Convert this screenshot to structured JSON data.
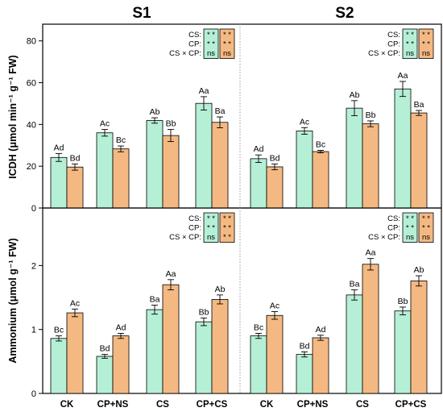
{
  "colors": {
    "series_1": "#b5efd6",
    "series_2": "#f4b982",
    "stroke": "#000000",
    "divider": "#9a9a9a"
  },
  "chart_data": [
    {
      "type": "bar",
      "categories": [
        "CK",
        "CP+NS",
        "CS",
        "CP+CS"
      ],
      "ylabel": "ICDH (μmol min⁻¹ g⁻¹ FW)",
      "ylim": [
        0,
        88
      ],
      "yticks": [
        0,
        20,
        40,
        60,
        80
      ],
      "panels": [
        {
          "title": "S1",
          "series": [
            {
              "values": [
                24.2,
                36.0,
                41.9,
                50.1
              ],
              "errors": [
                1.9,
                1.6,
                1.3,
                3.2
              ],
              "letters": [
                "Ad",
                "Ac",
                "Ab",
                "Aa"
              ]
            },
            {
              "values": [
                19.6,
                28.3,
                34.7,
                41.0
              ],
              "errors": [
                1.5,
                1.4,
                2.9,
                2.6
              ],
              "letters": [
                "Bd",
                "Bc",
                "Bb",
                "Ba"
              ]
            }
          ],
          "significance": [
            {
              "label": "CS:",
              "values": [
                "* *",
                "* *"
              ]
            },
            {
              "label": "CP:",
              "values": [
                "* *",
                "* *"
              ]
            },
            {
              "label": "CS × CP:",
              "values": [
                "ns",
                "ns"
              ]
            }
          ]
        },
        {
          "title": "S2",
          "series": [
            {
              "values": [
                23.6,
                36.9,
                47.8,
                57.0
              ],
              "errors": [
                1.8,
                1.6,
                3.6,
                3.6
              ],
              "letters": [
                "Ad",
                "Ac",
                "Ab",
                "Aa"
              ]
            },
            {
              "values": [
                19.7,
                27.0,
                40.3,
                45.5
              ],
              "errors": [
                1.4,
                0.6,
                1.4,
                1.2
              ],
              "letters": [
                "Bd",
                "Bc",
                "Bb",
                "Ba"
              ]
            }
          ],
          "significance": [
            {
              "label": "CS:",
              "values": [
                "* *",
                "* *"
              ]
            },
            {
              "label": "CP:",
              "values": [
                "* *",
                "* *"
              ]
            },
            {
              "label": "CS × CP:",
              "values": [
                "ns",
                "ns"
              ]
            }
          ]
        }
      ]
    },
    {
      "type": "bar",
      "categories": [
        "CK",
        "CP+NS",
        "CS",
        "CP+CS"
      ],
      "ylabel": "Ammonium (μmol g⁻¹ FW)",
      "ylim": [
        0,
        2.9
      ],
      "yticks": [
        0,
        1,
        2
      ],
      "panels": [
        {
          "title": "",
          "series": [
            {
              "values": [
                0.86,
                0.58,
                1.31,
                1.12
              ],
              "errors": [
                0.04,
                0.03,
                0.07,
                0.06
              ],
              "letters": [
                "Bc",
                "Bd",
                "Ba",
                "Bb"
              ]
            },
            {
              "values": [
                1.26,
                0.9,
                1.7,
                1.47
              ],
              "errors": [
                0.06,
                0.04,
                0.08,
                0.07
              ],
              "letters": [
                "Ac",
                "Ad",
                "Aa",
                "Ab"
              ]
            }
          ],
          "significance": [
            {
              "label": "CS:",
              "values": [
                "* *",
                "* *"
              ]
            },
            {
              "label": "CP:",
              "values": [
                "* *",
                "* *"
              ]
            },
            {
              "label": "CS × CP:",
              "values": [
                "ns",
                "* *"
              ]
            }
          ]
        },
        {
          "title": "",
          "series": [
            {
              "values": [
                0.9,
                0.61,
                1.54,
                1.29
              ],
              "errors": [
                0.04,
                0.04,
                0.08,
                0.06
              ],
              "letters": [
                "Bc",
                "Bd",
                "Ba",
                "Bb"
              ]
            },
            {
              "values": [
                1.22,
                0.87,
                2.02,
                1.76
              ],
              "errors": [
                0.06,
                0.04,
                0.09,
                0.08
              ],
              "letters": [
                "Ac",
                "Ad",
                "Aa",
                "Ab"
              ]
            }
          ],
          "significance": [
            {
              "label": "CS:",
              "values": [
                "* *",
                "* *"
              ]
            },
            {
              "label": "CP:",
              "values": [
                "* *",
                "* *"
              ]
            },
            {
              "label": "CS × CP:",
              "values": [
                "ns",
                "ns"
              ]
            }
          ]
        }
      ]
    }
  ]
}
